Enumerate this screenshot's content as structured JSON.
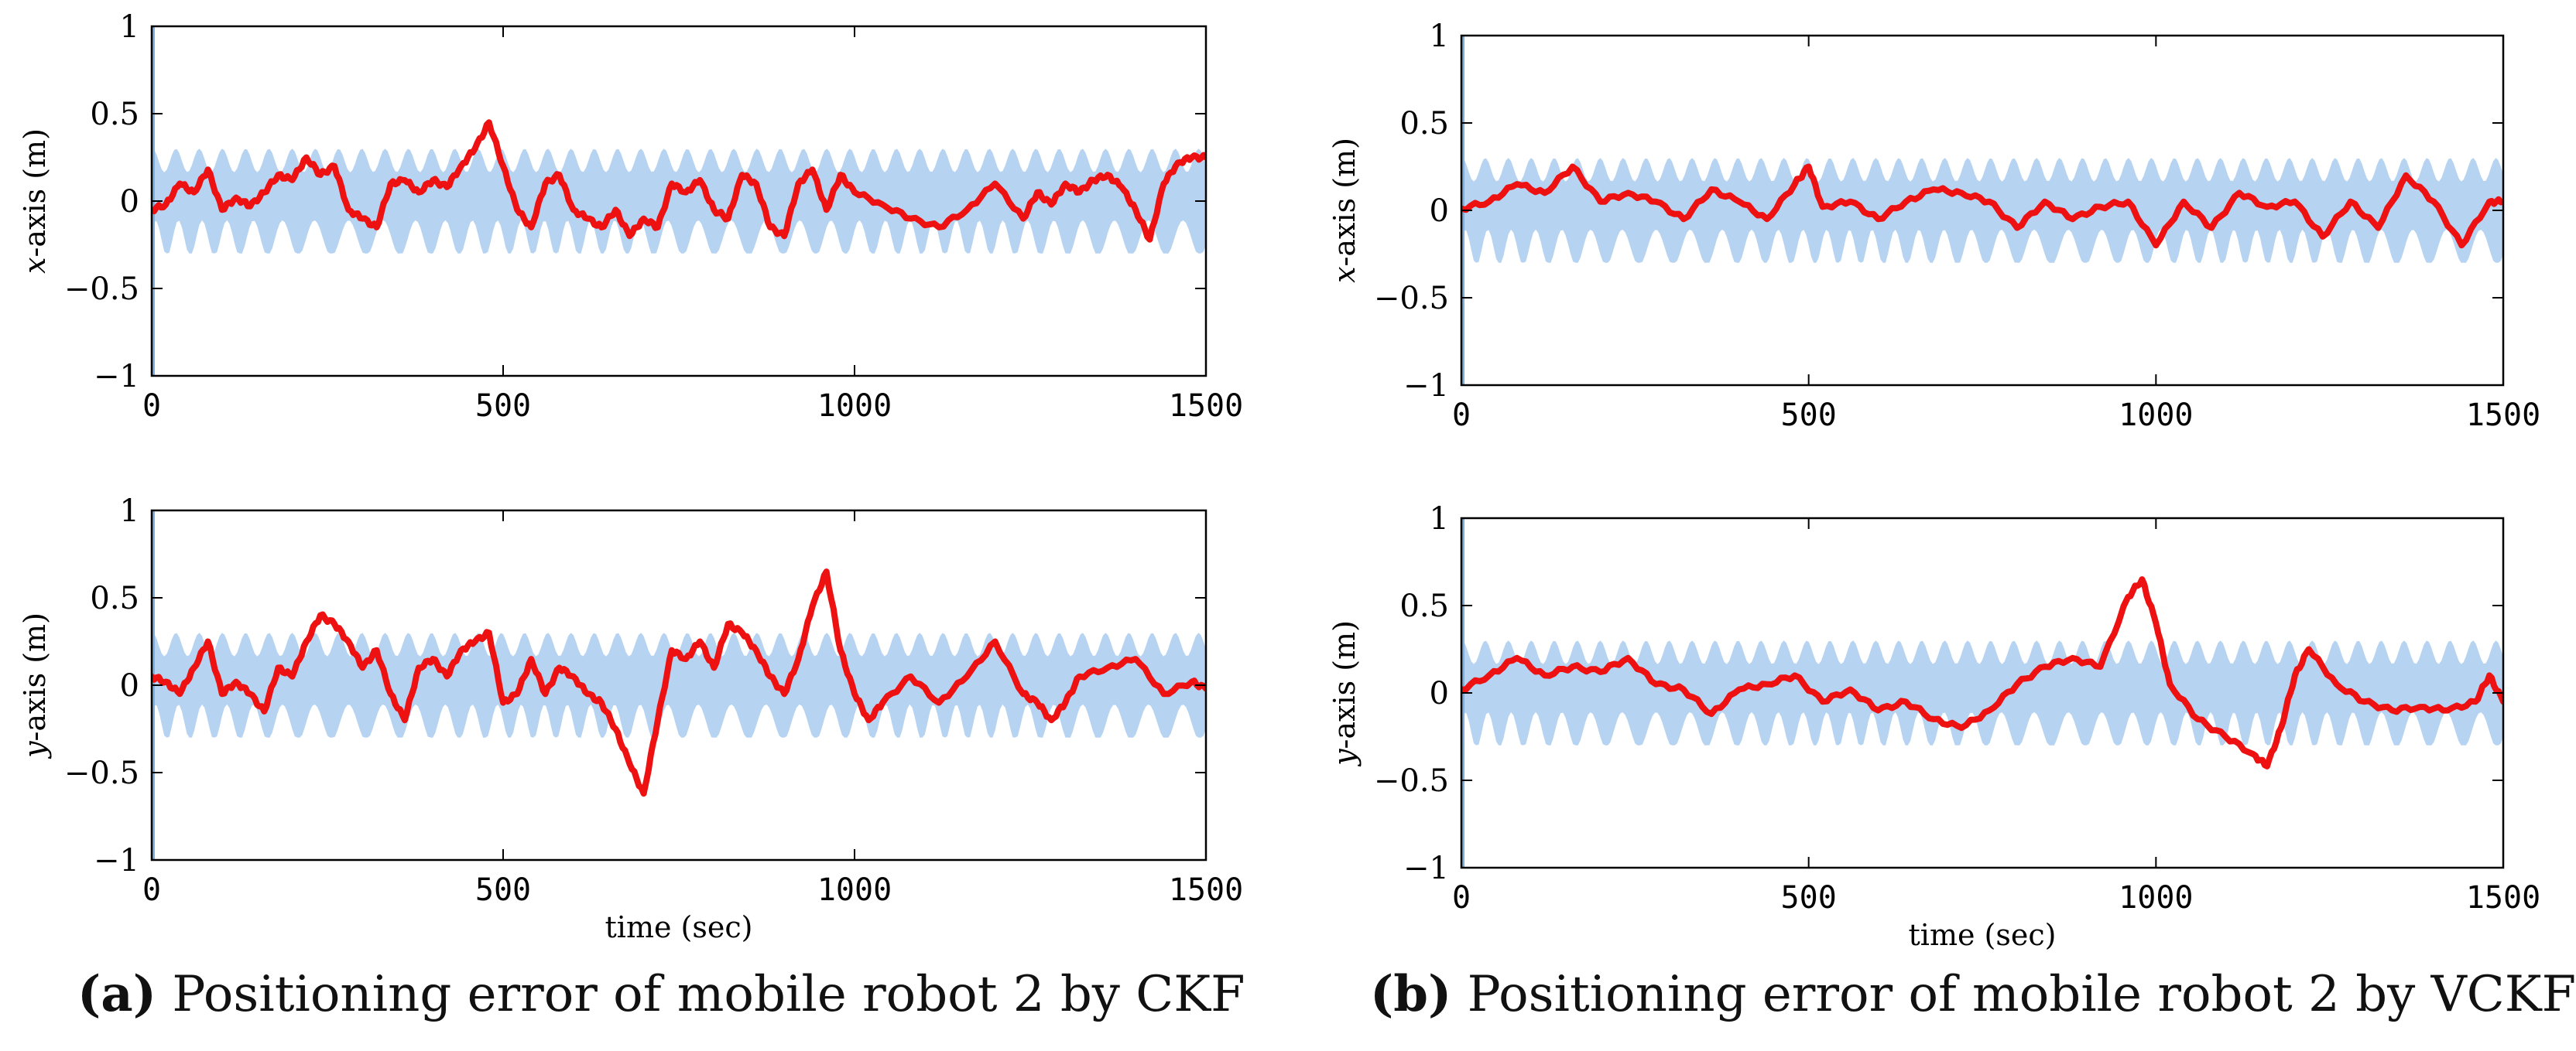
{
  "colors": {
    "band": "#b7d3f2",
    "error_line": "#ee1111",
    "axis": "#000000"
  },
  "chart_data": [
    {
      "id": "a-x",
      "type": "line",
      "panel": "a",
      "ylabel_var": "x",
      "ylabel_rest": "-axis (m)",
      "xlabel": "",
      "xlim": [
        0,
        1500
      ],
      "ylim": [
        -1,
        1
      ],
      "xticks": [
        "0",
        "500",
        "1000",
        "1500"
      ],
      "yticks": [
        "-1",
        "-0.5",
        "0",
        "0.5",
        "1"
      ],
      "series": [
        {
          "name": "error bound",
          "style": "band",
          "min": -0.3,
          "max": 0.3,
          "note": "oscillating ±3σ bound"
        },
        {
          "name": "positioning error",
          "style": "line",
          "x": [
            0,
            20,
            40,
            60,
            80,
            100,
            120,
            140,
            160,
            180,
            200,
            220,
            240,
            260,
            280,
            300,
            320,
            340,
            360,
            380,
            400,
            420,
            440,
            460,
            480,
            500,
            520,
            540,
            560,
            580,
            600,
            620,
            640,
            660,
            680,
            700,
            720,
            740,
            760,
            780,
            800,
            820,
            840,
            860,
            880,
            900,
            920,
            940,
            960,
            980,
            1000,
            1040,
            1080,
            1120,
            1160,
            1200,
            1240,
            1260,
            1280,
            1300,
            1320,
            1340,
            1360,
            1380,
            1400,
            1420,
            1440,
            1460,
            1480,
            1500
          ],
          "y": [
            -0.05,
            -0.02,
            0.1,
            0.05,
            0.18,
            -0.05,
            0.02,
            -0.03,
            0.05,
            0.15,
            0.12,
            0.25,
            0.15,
            0.2,
            -0.05,
            -0.1,
            -0.15,
            0.1,
            0.12,
            0.05,
            0.12,
            0.08,
            0.2,
            0.3,
            0.45,
            0.2,
            -0.05,
            -0.15,
            0.1,
            0.15,
            -0.05,
            -0.1,
            -0.15,
            -0.05,
            -0.2,
            -0.1,
            -0.15,
            0.1,
            0.05,
            0.12,
            -0.05,
            -0.1,
            0.15,
            0.1,
            -0.15,
            -0.2,
            0.1,
            0.18,
            -0.05,
            0.15,
            0.05,
            -0.02,
            -0.1,
            -0.15,
            -0.05,
            0.1,
            -0.1,
            0.05,
            -0.02,
            0.1,
            0.05,
            0.12,
            0.15,
            0.08,
            -0.05,
            -0.22,
            0.1,
            0.22,
            0.25,
            0.25
          ]
        }
      ]
    },
    {
      "id": "a-y",
      "type": "line",
      "panel": "a",
      "ylabel_var": "y",
      "ylabel_rest": "-axis (m)",
      "xlabel": "time (sec)",
      "xlim": [
        0,
        1500
      ],
      "ylim": [
        -1,
        1
      ],
      "xticks": [
        "0",
        "500",
        "1000",
        "1500"
      ],
      "yticks": [
        "-1",
        "-0.5",
        "0",
        "0.5",
        "1"
      ],
      "series": [
        {
          "name": "error bound",
          "style": "band",
          "min": -0.3,
          "max": 0.3,
          "note": "oscillating ±3σ bound"
        },
        {
          "name": "positioning error",
          "style": "line",
          "x": [
            0,
            20,
            40,
            60,
            80,
            100,
            120,
            140,
            160,
            180,
            200,
            220,
            240,
            260,
            280,
            300,
            320,
            340,
            360,
            380,
            400,
            420,
            440,
            460,
            480,
            500,
            520,
            540,
            560,
            580,
            600,
            620,
            640,
            660,
            680,
            700,
            720,
            740,
            760,
            780,
            800,
            820,
            840,
            860,
            880,
            900,
            920,
            940,
            960,
            980,
            1000,
            1020,
            1040,
            1080,
            1120,
            1160,
            1200,
            1240,
            1260,
            1280,
            1300,
            1320,
            1360,
            1400,
            1440,
            1480,
            1500
          ],
          "y": [
            0.05,
            0.02,
            -0.05,
            0.1,
            0.25,
            -0.05,
            0.02,
            -0.05,
            -0.15,
            0.1,
            0.05,
            0.25,
            0.4,
            0.35,
            0.25,
            0.1,
            0.2,
            -0.05,
            -0.2,
            0.1,
            0.15,
            0.05,
            0.2,
            0.25,
            0.3,
            -0.1,
            -0.05,
            0.15,
            -0.05,
            0.1,
            0.05,
            -0.05,
            -0.1,
            -0.25,
            -0.45,
            -0.62,
            -0.2,
            0.2,
            0.15,
            0.25,
            0.1,
            0.35,
            0.3,
            0.2,
            0.05,
            -0.05,
            0.15,
            0.45,
            0.65,
            0.2,
            -0.05,
            -0.2,
            -0.1,
            0.05,
            -0.1,
            0.05,
            0.25,
            -0.05,
            -0.1,
            -0.2,
            -0.1,
            0.05,
            0.1,
            0.15,
            -0.05,
            0.02,
            -0.02
          ]
        }
      ]
    },
    {
      "id": "b-x",
      "type": "line",
      "panel": "b",
      "ylabel_var": "x",
      "ylabel_rest": "-axis (m)",
      "xlabel": "",
      "xlim": [
        0,
        1500
      ],
      "ylim": [
        -1,
        1
      ],
      "xticks": [
        "0",
        "500",
        "1000",
        "1500"
      ],
      "yticks": [
        "-1",
        "-0.5",
        "0",
        "0.5",
        "1"
      ],
      "series": [
        {
          "name": "error bound",
          "style": "band",
          "min": -0.3,
          "max": 0.3,
          "note": "oscillating ±3σ bound"
        },
        {
          "name": "positioning error",
          "style": "line",
          "x": [
            0,
            40,
            80,
            120,
            160,
            200,
            240,
            280,
            320,
            360,
            400,
            440,
            480,
            500,
            520,
            560,
            600,
            640,
            680,
            720,
            760,
            800,
            840,
            880,
            920,
            960,
            1000,
            1040,
            1080,
            1120,
            1160,
            1200,
            1240,
            1280,
            1320,
            1360,
            1400,
            1440,
            1480,
            1500
          ],
          "y": [
            0.01,
            0.05,
            0.15,
            0.1,
            0.25,
            0.05,
            0.1,
            0.05,
            -0.05,
            0.12,
            0.05,
            -0.05,
            0.15,
            0.25,
            0.02,
            0.05,
            -0.05,
            0.05,
            0.12,
            0.1,
            0.05,
            -0.1,
            0.05,
            -0.05,
            0.02,
            0.05,
            -0.2,
            0.05,
            -0.1,
            0.1,
            0.02,
            0.05,
            -0.15,
            0.05,
            -0.1,
            0.2,
            0.05,
            -0.2,
            0.05,
            0.05
          ]
        }
      ]
    },
    {
      "id": "b-y",
      "type": "line",
      "panel": "b",
      "ylabel_var": "y",
      "ylabel_rest": "-axis (m)",
      "xlabel": "time (sec)",
      "xlim": [
        0,
        1500
      ],
      "ylim": [
        -1,
        1
      ],
      "xticks": [
        "0",
        "500",
        "1000",
        "1500"
      ],
      "yticks": [
        "-1",
        "-0.5",
        "0",
        "0.5",
        "1"
      ],
      "series": [
        {
          "name": "error bound",
          "style": "band",
          "min": -0.3,
          "max": 0.3,
          "note": "oscillating ±3σ bound"
        },
        {
          "name": "positioning error",
          "style": "line",
          "x": [
            0,
            40,
            80,
            120,
            160,
            200,
            240,
            280,
            320,
            360,
            400,
            440,
            480,
            520,
            560,
            600,
            640,
            680,
            720,
            760,
            800,
            840,
            880,
            920,
            960,
            980,
            1000,
            1020,
            1060,
            1100,
            1140,
            1160,
            1180,
            1200,
            1220,
            1260,
            1300,
            1340,
            1380,
            1420,
            1460,
            1480,
            1500
          ],
          "y": [
            0.02,
            0.1,
            0.2,
            0.1,
            0.15,
            0.12,
            0.2,
            0.05,
            0.02,
            -0.12,
            0.02,
            0.05,
            0.1,
            -0.05,
            0.02,
            -0.1,
            -0.05,
            -0.15,
            -0.2,
            -0.1,
            0.05,
            0.15,
            0.2,
            0.15,
            0.55,
            0.65,
            0.4,
            0.05,
            -0.15,
            -0.25,
            -0.35,
            -0.42,
            -0.2,
            0.1,
            0.25,
            0.05,
            -0.05,
            -0.1,
            -0.08,
            -0.1,
            -0.05,
            0.1,
            -0.05
          ]
        }
      ]
    }
  ],
  "captions": {
    "a": {
      "tag": "(a)",
      "text": "Positioning error of mobile robot 2 by CKF"
    },
    "b": {
      "tag": "(b)",
      "text": "Positioning error of mobile robot 2 by VCKF"
    }
  }
}
